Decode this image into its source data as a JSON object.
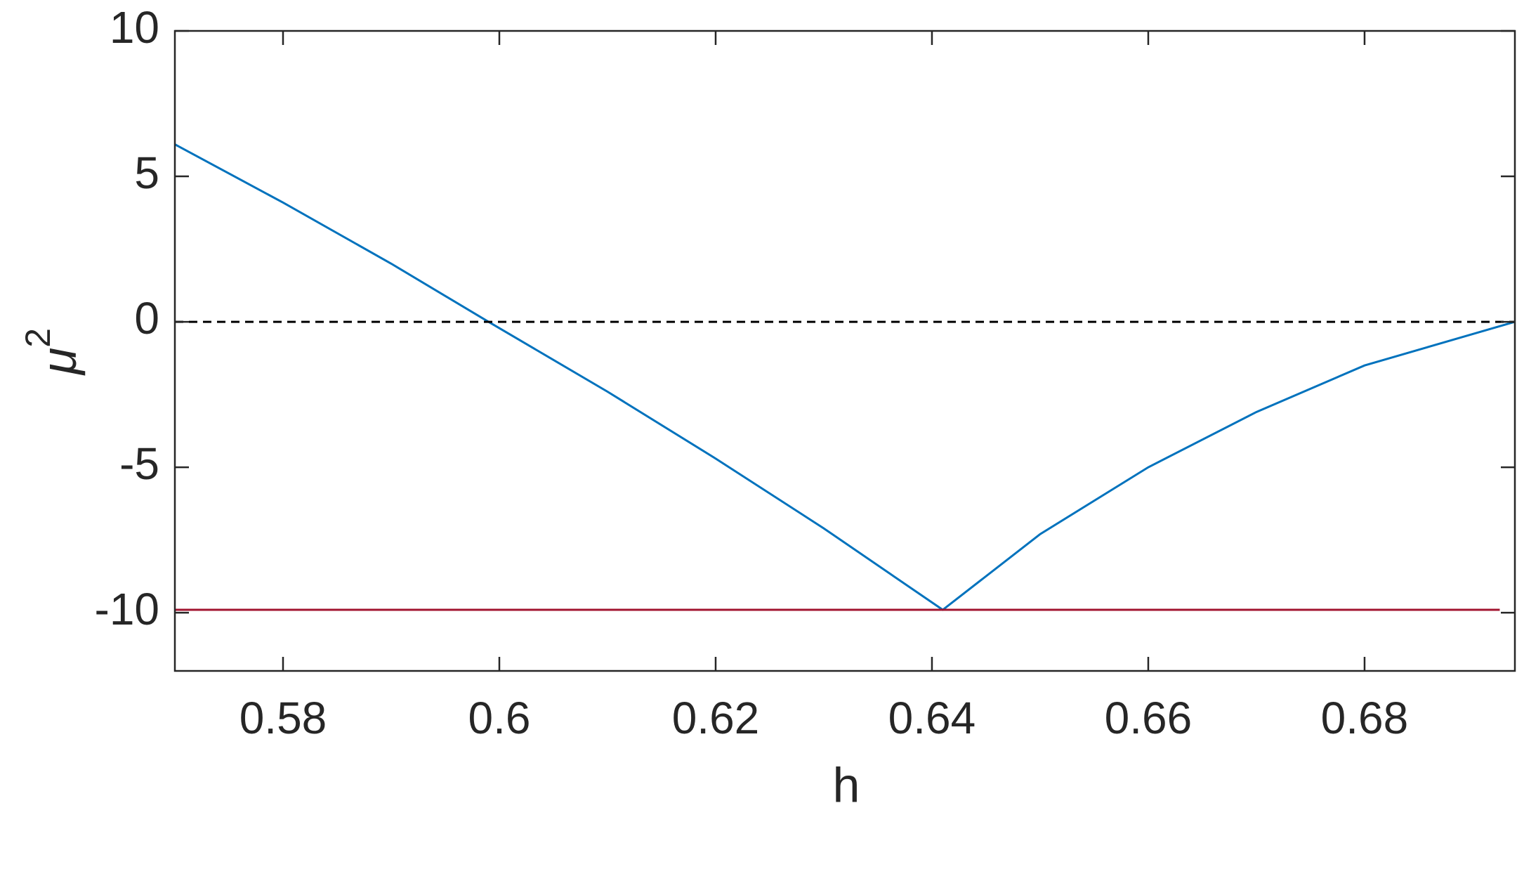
{
  "chart_data": {
    "type": "line",
    "xlabel": "h",
    "ylabel": [
      "μ",
      "2"
    ],
    "xlim": [
      0.57,
      0.6939
    ],
    "ylim": [
      -12,
      10
    ],
    "xticks": [
      0.58,
      0.6,
      0.62,
      0.64,
      0.66,
      0.68
    ],
    "yticks": [
      -10,
      -5,
      0,
      5,
      10
    ],
    "series": [
      {
        "color": "#0072bd",
        "dash": false,
        "x": [
          0.57,
          0.58,
          0.59,
          0.599,
          0.61,
          0.62,
          0.63,
          0.641,
          0.65,
          0.66,
          0.67,
          0.68,
          0.6939
        ],
        "values": [
          6.1,
          4.1,
          2.0,
          0,
          -2.4,
          -4.7,
          -7.1,
          -9.9,
          -7.3,
          -5.0,
          -3.1,
          -1.5,
          0
        ]
      },
      {
        "color": "#000000",
        "dash": true,
        "x": [
          0.57,
          0.6939
        ],
        "values": [
          0,
          0
        ]
      },
      {
        "color": "#a2142f",
        "dash": false,
        "x": [
          0.57,
          0.6925
        ],
        "values": [
          -9.9,
          -9.9
        ]
      }
    ]
  }
}
